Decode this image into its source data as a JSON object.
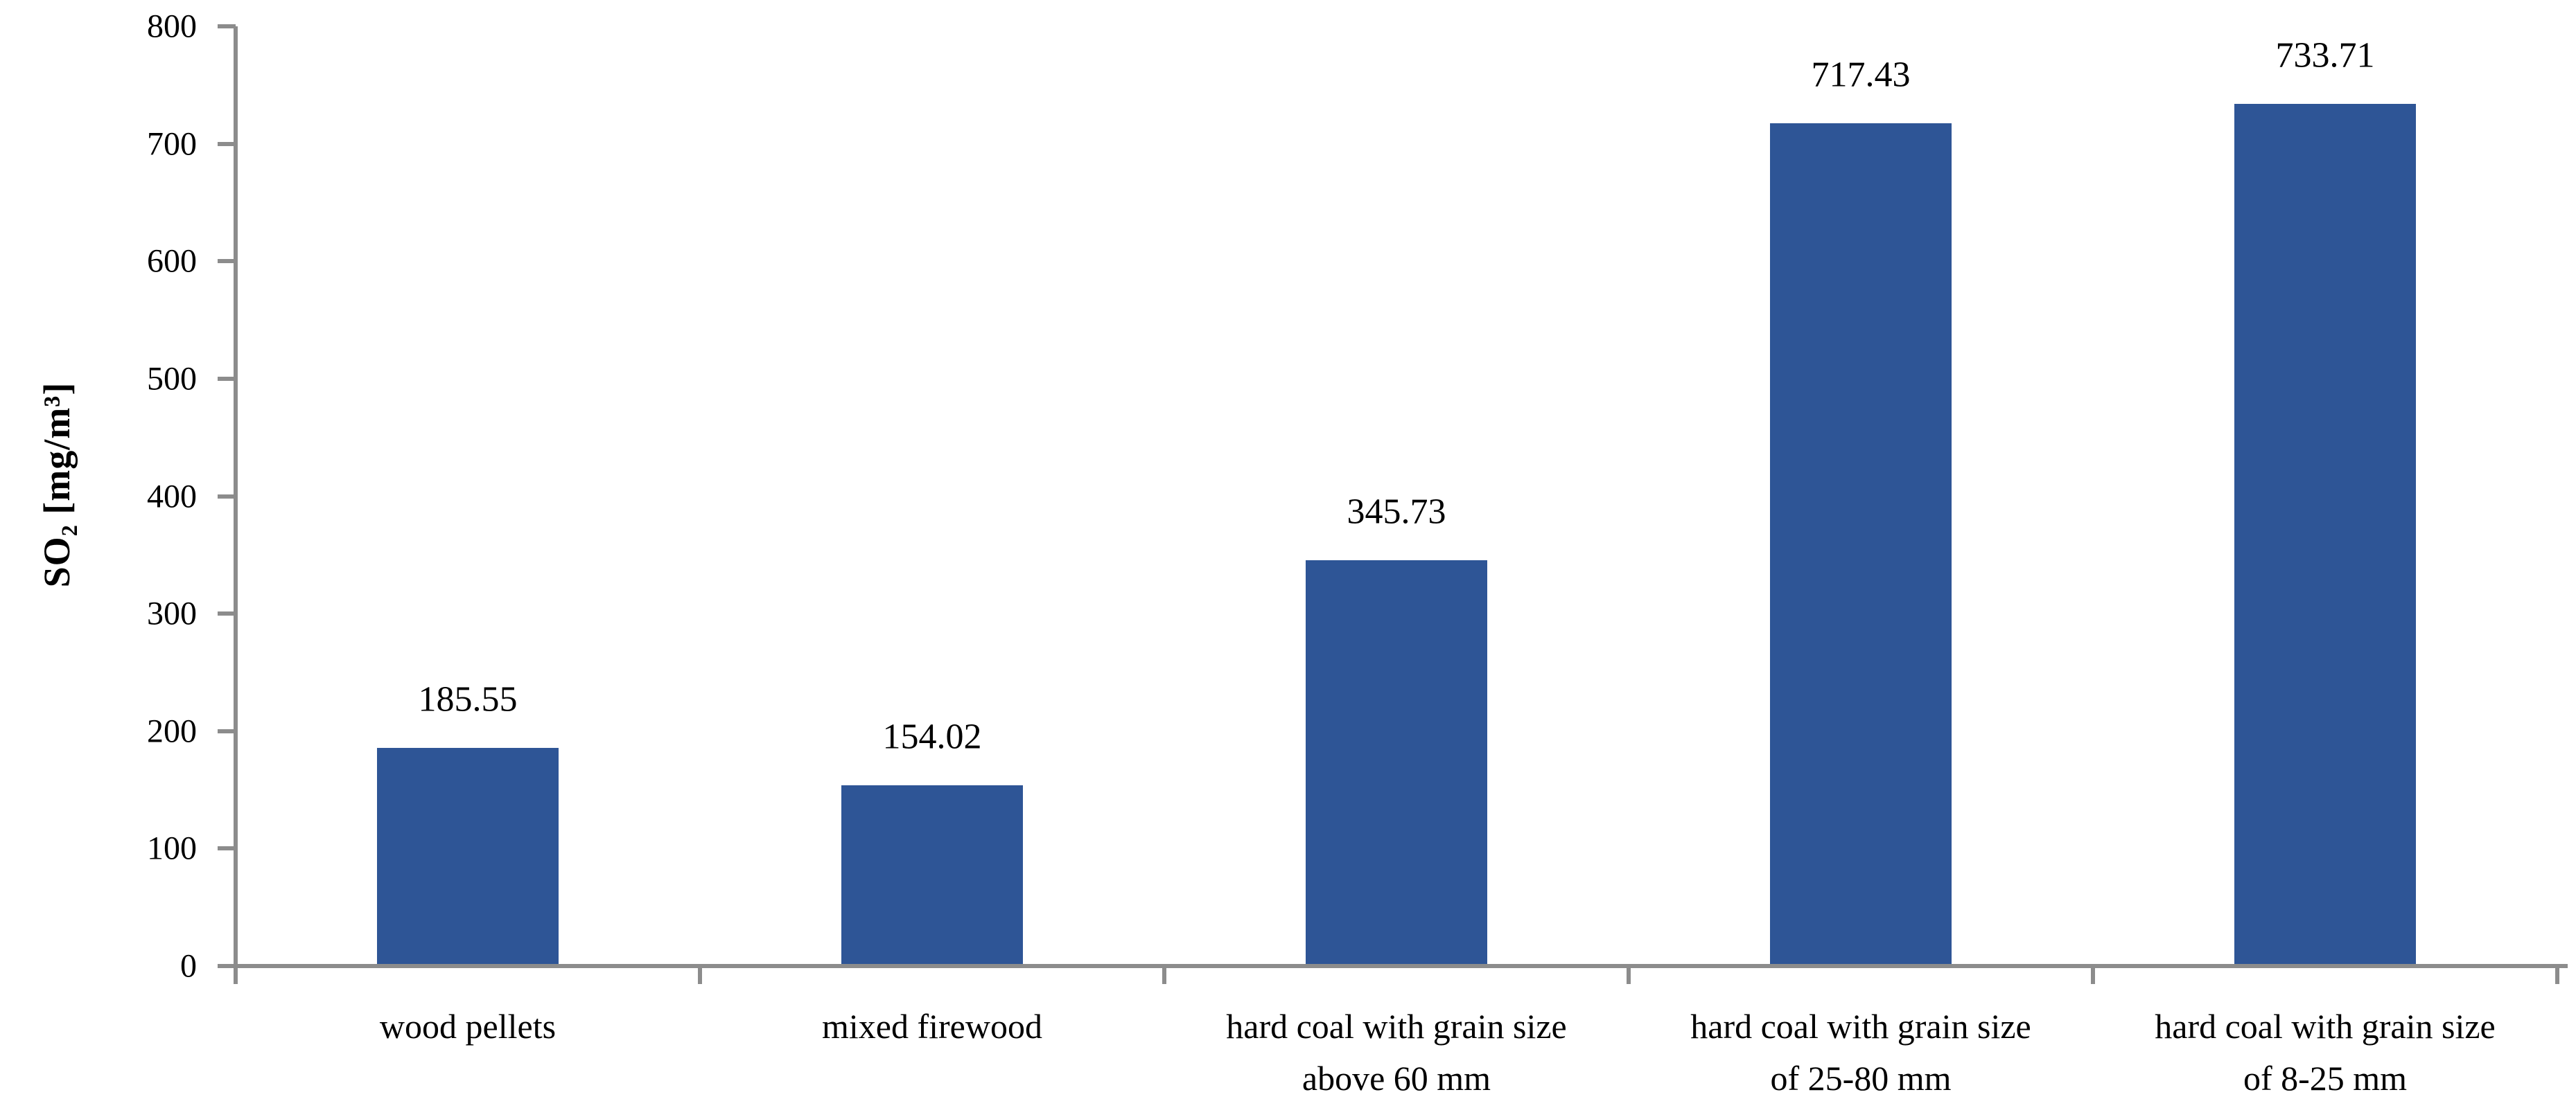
{
  "chart_data": {
    "type": "bar",
    "title": "",
    "xlabel": "",
    "ylabel": "SO₂ [mg/m³]",
    "categories": [
      "wood pellets",
      "mixed firewood",
      "hard coal with grain size above 60 mm",
      "hard coal with grain size of 25-80 mm",
      "hard coal with grain size of 8-25 mm"
    ],
    "category_lines": [
      [
        "wood pellets"
      ],
      [
        "mixed firewood"
      ],
      [
        "hard coal with grain size",
        "above 60 mm"
      ],
      [
        "hard coal with grain size",
        "of 25-80 mm"
      ],
      [
        "hard coal with grain size",
        "of 8-25 mm"
      ]
    ],
    "values": [
      185.55,
      154.02,
      345.73,
      717.43,
      733.71
    ],
    "value_labels": [
      "185.55",
      "154.02",
      "345.73",
      "717.43",
      "733.71"
    ],
    "ylim": [
      0,
      800
    ],
    "ytick_step": 100,
    "yticks": [
      0,
      100,
      200,
      300,
      400,
      500,
      600,
      700,
      800
    ],
    "grid": false,
    "legend": false,
    "bar_color": "#2E5596",
    "axis_color": "#8C8C8C",
    "text_color": "#000000",
    "background_color": "#FFFFFF"
  }
}
